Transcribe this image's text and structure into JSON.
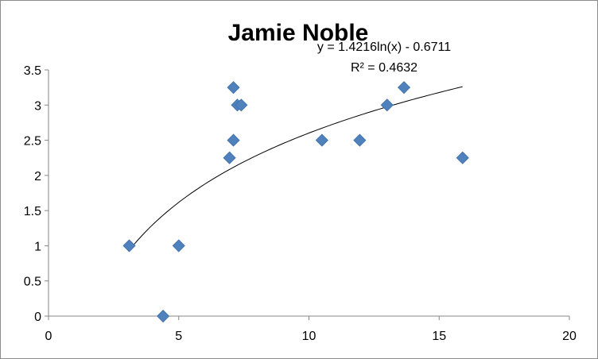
{
  "chart_data": {
    "type": "scatter",
    "title": "Jamie Noble",
    "xlabel": "",
    "ylabel": "",
    "xlim": [
      0,
      20
    ],
    "ylim": [
      0,
      3.5
    ],
    "x_ticks": [
      "0",
      "5",
      "10",
      "15",
      "20"
    ],
    "y_ticks": [
      "0",
      "0.5",
      "1",
      "1.5",
      "2",
      "2.5",
      "3",
      "3.5"
    ],
    "grid": false,
    "legend": "none",
    "marker": "diamond",
    "marker_color": "#4f81bd",
    "points": [
      {
        "x": 3.1,
        "y": 1.0
      },
      {
        "x": 4.4,
        "y": 0.0
      },
      {
        "x": 5.0,
        "y": 1.0
      },
      {
        "x": 6.95,
        "y": 2.25
      },
      {
        "x": 7.1,
        "y": 2.5
      },
      {
        "x": 7.1,
        "y": 3.25
      },
      {
        "x": 7.25,
        "y": 3.0
      },
      {
        "x": 7.4,
        "y": 3.0
      },
      {
        "x": 10.5,
        "y": 2.5
      },
      {
        "x": 11.95,
        "y": 2.5
      },
      {
        "x": 13.0,
        "y": 3.0
      },
      {
        "x": 13.65,
        "y": 3.25
      },
      {
        "x": 15.9,
        "y": 2.25
      }
    ],
    "trendline": {
      "type": "logarithmic",
      "a": 1.4216,
      "b": -0.6711,
      "x_range": [
        3.1,
        15.9
      ],
      "color": "#000000",
      "equation_label": "y = 1.4216ln(x) - 0.6711",
      "r2_label": "R² = 0.4632"
    }
  }
}
